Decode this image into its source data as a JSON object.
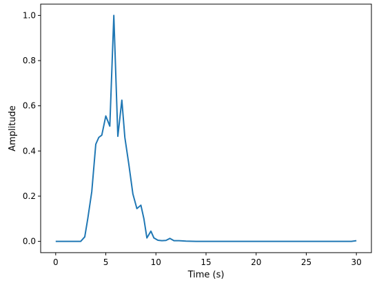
{
  "chart_data": {
    "type": "line",
    "title": "",
    "xlabel": "Time (s)",
    "ylabel": "Amplitude",
    "xlim": [
      -1.5,
      31.5
    ],
    "ylim": [
      -0.05,
      1.05
    ],
    "x_ticks": [
      0,
      5,
      10,
      15,
      20,
      25,
      30
    ],
    "y_ticks": [
      0.0,
      0.2,
      0.4,
      0.6,
      0.8,
      1.0
    ],
    "x_tick_labels": [
      "0",
      "5",
      "10",
      "15",
      "20",
      "25",
      "30"
    ],
    "y_tick_labels": [
      "0.0",
      "0.2",
      "0.4",
      "0.6",
      "0.8",
      "1.0"
    ],
    "grid": false,
    "line_color": "#1f77b4",
    "series": [
      {
        "x": [
          0,
          0.5,
          1.0,
          1.5,
          2.0,
          2.5,
          2.9,
          3.2,
          3.6,
          4.0,
          4.3,
          4.6,
          5.0,
          5.4,
          5.8,
          6.2,
          6.6,
          6.9,
          7.3,
          7.7,
          8.1,
          8.5,
          8.8,
          9.1,
          9.5,
          9.8,
          10.2,
          10.6,
          11.0,
          11.4,
          11.8,
          12.3,
          13,
          14,
          16,
          18,
          20,
          22,
          24,
          26,
          28,
          29.5,
          30
        ],
        "y": [
          0.0,
          0.0,
          0.0,
          0.0,
          0.0,
          0.0,
          0.02,
          0.1,
          0.22,
          0.43,
          0.46,
          0.47,
          0.555,
          0.51,
          1.0,
          0.465,
          0.625,
          0.46,
          0.34,
          0.21,
          0.145,
          0.16,
          0.1,
          0.015,
          0.045,
          0.015,
          0.005,
          0.003,
          0.004,
          0.013,
          0.003,
          0.003,
          0.001,
          0.0,
          0.0,
          0.0,
          0.0,
          0.0,
          0.0,
          0.0,
          0.0,
          0.0,
          0.003
        ]
      }
    ]
  }
}
